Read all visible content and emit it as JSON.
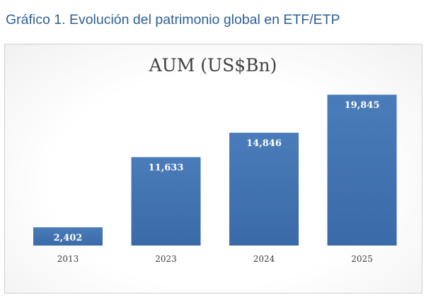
{
  "page": {
    "heading": "Gráfico 1. Evolución del patrimonio global en ETF/ETP"
  },
  "chart_data": {
    "type": "bar",
    "title": "AUM (US$Bn)",
    "categories": [
      "2013",
      "2023",
      "2024",
      "2025"
    ],
    "values": [
      2402,
      11633,
      14846,
      19845
    ],
    "value_labels": [
      "2,402",
      "11,633",
      "14,846",
      "19,845"
    ],
    "ylim": [
      0,
      22000
    ],
    "grid": false,
    "legend": "none",
    "bar_color": "#4a7cba",
    "bar_color_dark": "#3a6aa8",
    "label_color": "#ffffff",
    "title_color": "#404040",
    "tick_color": "#404040"
  }
}
